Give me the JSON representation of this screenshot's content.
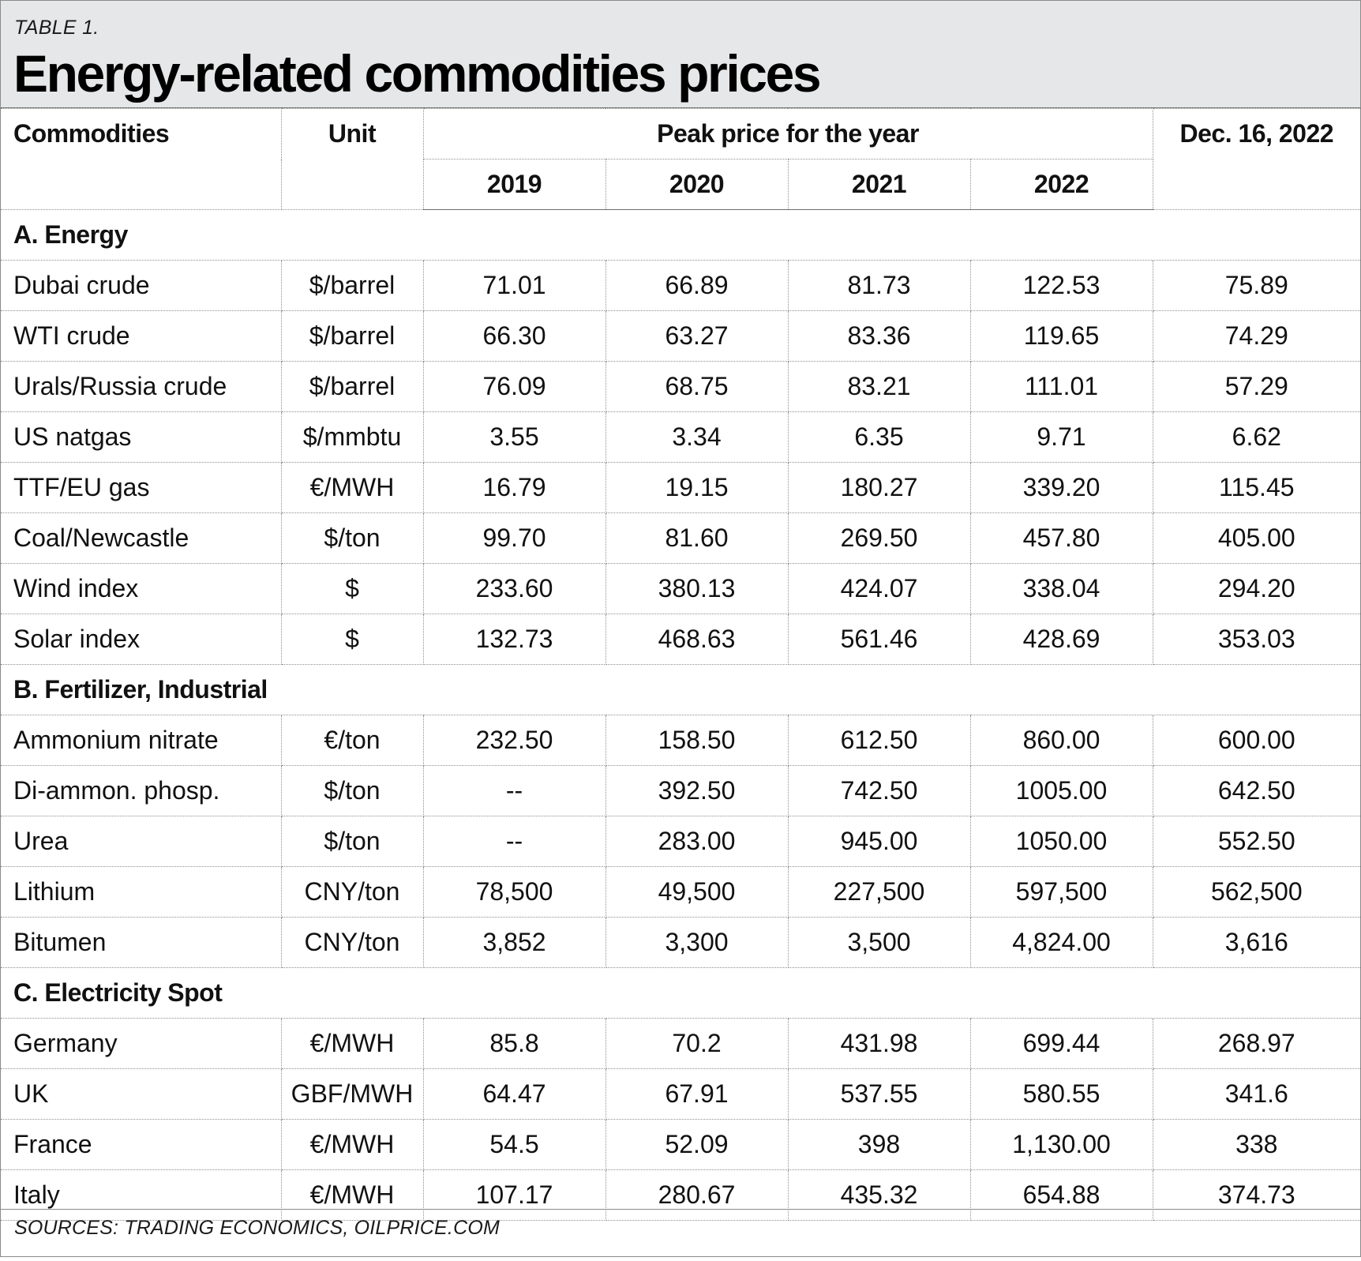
{
  "table_label": "TABLE 1.",
  "title": "Energy-related commodities prices",
  "headers": {
    "commodities": "Commodities",
    "unit": "Unit",
    "peak": "Peak price for the year",
    "date": "Dec. 16, 2022",
    "years": [
      "2019",
      "2020",
      "2021",
      "2022"
    ]
  },
  "sections": [
    {
      "title": "A. Energy",
      "rows": [
        {
          "name": "Dubai crude",
          "unit": "$/barrel",
          "v2019": "71.01",
          "v2020": "66.89",
          "v2021": "81.73",
          "v2022": "122.53",
          "dec16": "75.89"
        },
        {
          "name": "WTI crude",
          "unit": "$/barrel",
          "v2019": "66.30",
          "v2020": "63.27",
          "v2021": "83.36",
          "v2022": "119.65",
          "dec16": "74.29"
        },
        {
          "name": "Urals/Russia crude",
          "unit": "$/barrel",
          "v2019": "76.09",
          "v2020": "68.75",
          "v2021": "83.21",
          "v2022": "111.01",
          "dec16": "57.29"
        },
        {
          "name": "US natgas",
          "unit": "$/mmbtu",
          "v2019": "3.55",
          "v2020": "3.34",
          "v2021": "6.35",
          "v2022": "9.71",
          "dec16": "6.62"
        },
        {
          "name": "TTF/EU gas",
          "unit": "€/MWH",
          "v2019": "16.79",
          "v2020": "19.15",
          "v2021": "180.27",
          "v2022": "339.20",
          "dec16": "115.45"
        },
        {
          "name": "Coal/Newcastle",
          "unit": "$/ton",
          "v2019": "99.70",
          "v2020": "81.60",
          "v2021": "269.50",
          "v2022": "457.80",
          "dec16": "405.00"
        },
        {
          "name": "Wind index",
          "unit": "$",
          "v2019": "233.60",
          "v2020": "380.13",
          "v2021": "424.07",
          "v2022": "338.04",
          "dec16": "294.20"
        },
        {
          "name": "Solar index",
          "unit": "$",
          "v2019": "132.73",
          "v2020": "468.63",
          "v2021": "561.46",
          "v2022": "428.69",
          "dec16": "353.03"
        }
      ]
    },
    {
      "title": "B. Fertilizer, Industrial",
      "rows": [
        {
          "name": "Ammonium nitrate",
          "unit": "€/ton",
          "v2019": "232.50",
          "v2020": "158.50",
          "v2021": "612.50",
          "v2022": "860.00",
          "dec16": "600.00"
        },
        {
          "name": "Di-ammon. phosp.",
          "unit": "$/ton",
          "v2019": "--",
          "v2020": "392.50",
          "v2021": "742.50",
          "v2022": "1005.00",
          "dec16": "642.50"
        },
        {
          "name": "Urea",
          "unit": "$/ton",
          "v2019": "--",
          "v2020": "283.00",
          "v2021": "945.00",
          "v2022": "1050.00",
          "dec16": "552.50"
        },
        {
          "name": "Lithium",
          "unit": "CNY/ton",
          "v2019": "78,500",
          "v2020": "49,500",
          "v2021": "227,500",
          "v2022": "597,500",
          "dec16": "562,500"
        },
        {
          "name": "Bitumen",
          "unit": "CNY/ton",
          "v2019": "3,852",
          "v2020": "3,300",
          "v2021": "3,500",
          "v2022": "4,824.00",
          "dec16": "3,616"
        }
      ]
    },
    {
      "title": "C. Electricity Spot",
      "rows": [
        {
          "name": "Germany",
          "unit": "€/MWH",
          "v2019": "85.8",
          "v2020": "70.2",
          "v2021": "431.98",
          "v2022": "699.44",
          "dec16": "268.97"
        },
        {
          "name": "UK",
          "unit": "GBF/MWH",
          "v2019": "64.47",
          "v2020": "67.91",
          "v2021": "537.55",
          "v2022": "580.55",
          "dec16": "341.6"
        },
        {
          "name": "France",
          "unit": "€/MWH",
          "v2019": "54.5",
          "v2020": "52.09",
          "v2021": "398",
          "v2022": "1,130.00",
          "dec16": "338"
        },
        {
          "name": "Italy",
          "unit": "€/MWH",
          "v2019": "107.17",
          "v2020": "280.67",
          "v2021": "435.32",
          "v2022": "654.88",
          "dec16": "374.73"
        }
      ]
    }
  ],
  "sources": "SOURCES: TRADING ECONOMICS, OILPRICE.COM"
}
